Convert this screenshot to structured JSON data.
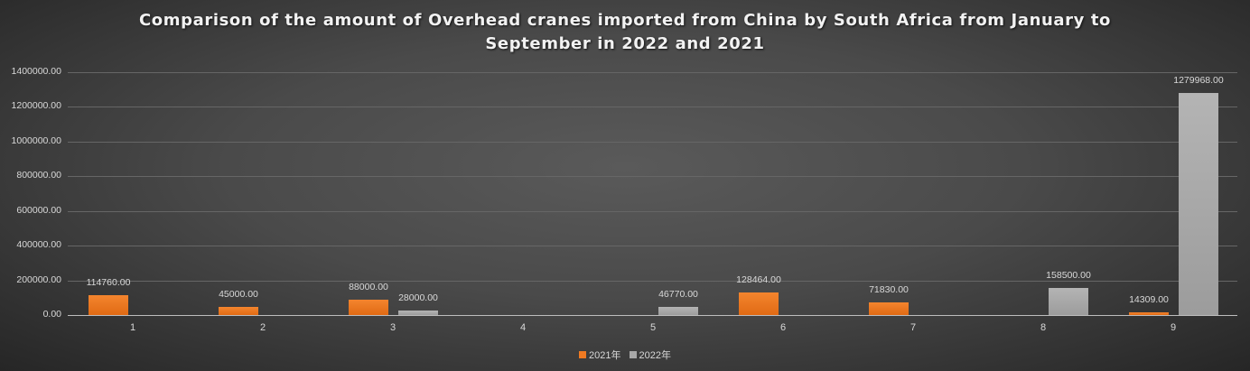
{
  "chart_data": {
    "type": "bar",
    "title": "Comparison of the amount of Overhead cranes imported from China by South Africa from January to September in 2022 and 2021",
    "title_lines": [
      "Comparison of the amount of Overhead cranes imported from China by South Africa from January to",
      "September in 2022 and 2021"
    ],
    "xlabel": "",
    "ylabel": "",
    "categories": [
      "1",
      "2",
      "3",
      "4",
      "5",
      "6",
      "7",
      "8",
      "9"
    ],
    "series": [
      {
        "name": "2021年",
        "color": "#f07a22",
        "values": [
          114760.0,
          45000.0,
          88000.0,
          null,
          null,
          128464.0,
          71830.0,
          null,
          14309.0
        ]
      },
      {
        "name": "2022年",
        "color": "#a8a8a8",
        "values": [
          null,
          null,
          28000.0,
          null,
          46770.0,
          null,
          null,
          158500.0,
          1279968.0
        ]
      }
    ],
    "data_labels": {
      "2021年": [
        "114760.00",
        "45000.00",
        "88000.00",
        "",
        "",
        "128464.00",
        "71830.00",
        "",
        "14309.00"
      ],
      "2022年": [
        "",
        "",
        "28000.00",
        "",
        "46770.00",
        "",
        "",
        "158500.00",
        "1279968.00"
      ]
    },
    "ylim": [
      0,
      1400000
    ],
    "yticks": [
      "0.00",
      "200000.00",
      "400000.00",
      "600000.00",
      "800000.00",
      "1000000.00",
      "1200000.00",
      "1400000.00"
    ],
    "grid": true,
    "legend_position": "bottom"
  },
  "legend": {
    "items": [
      {
        "label": "2021年",
        "color": "#f07a22"
      },
      {
        "label": "2022年",
        "color": "#a8a8a8"
      }
    ]
  }
}
